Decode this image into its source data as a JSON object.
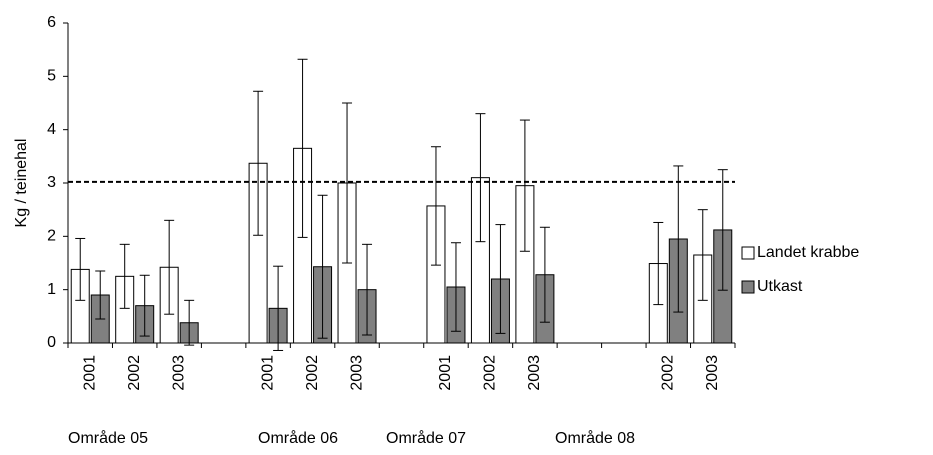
{
  "chart_data": {
    "type": "bar",
    "ylabel": "Kg / teinehal",
    "categories": [
      "2001",
      "2002",
      "2003",
      null,
      "2001",
      "2002",
      "2003",
      null,
      "2001",
      "2002",
      "2003",
      null,
      null,
      "2002",
      "2003"
    ],
    "groups": [
      "Område 05",
      "Område 06",
      "Område 07",
      "Område 08"
    ],
    "series": [
      {
        "name": "Landet krabbe",
        "color": "#ffffff",
        "values": [
          1.38,
          1.25,
          1.42,
          null,
          3.37,
          3.65,
          3.0,
          null,
          2.57,
          3.1,
          2.95,
          null,
          null,
          1.49,
          1.65
        ],
        "errors": [
          0.58,
          0.6,
          0.88,
          null,
          1.35,
          1.67,
          1.5,
          null,
          1.11,
          1.2,
          1.23,
          null,
          null,
          0.77,
          0.85
        ]
      },
      {
        "name": "Utkast",
        "color": "#808080",
        "values": [
          0.9,
          0.7,
          0.38,
          null,
          0.65,
          1.43,
          1.0,
          null,
          1.05,
          1.2,
          1.28,
          null,
          null,
          1.95,
          2.12
        ],
        "errors": [
          0.45,
          0.57,
          0.42,
          null,
          0.79,
          1.34,
          0.85,
          null,
          0.83,
          1.02,
          0.89,
          null,
          null,
          1.37,
          1.13
        ]
      }
    ],
    "reference_line": 3.02,
    "ylim": [
      0,
      6
    ],
    "yticks": [
      0,
      1,
      2,
      3,
      4,
      5,
      6
    ],
    "grid": false,
    "legend": "right"
  }
}
